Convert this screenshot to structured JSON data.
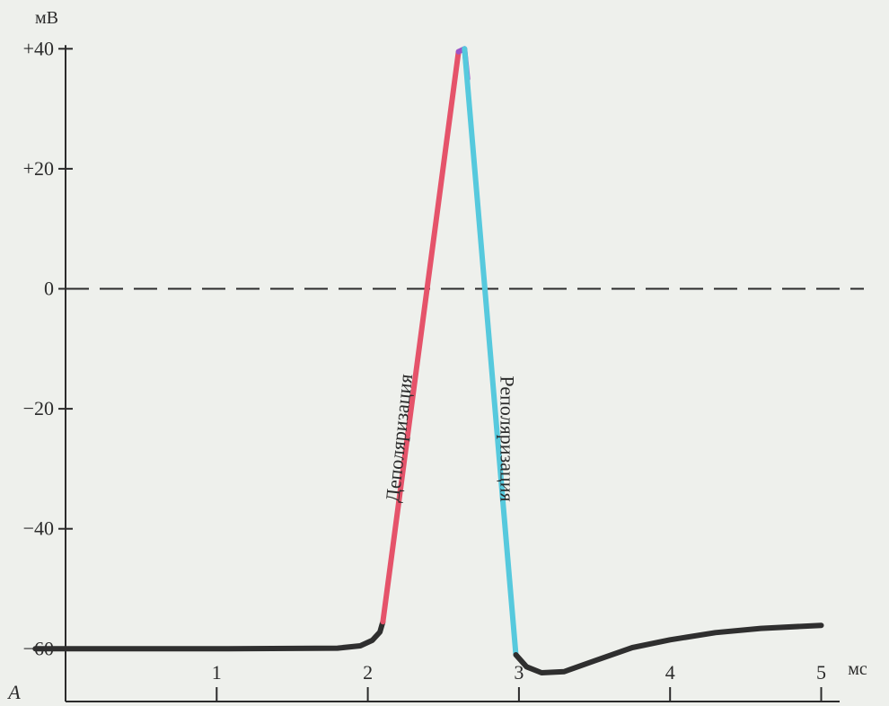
{
  "chart_data": {
    "type": "line",
    "panel_label": "A",
    "y_unit": "мВ",
    "x_unit": "мс",
    "xlim": [
      0,
      5.35
    ],
    "ylim": [
      -68,
      40
    ],
    "x_ticks": [
      {
        "value": 1,
        "label": "1"
      },
      {
        "value": 2,
        "label": "2"
      },
      {
        "value": 3,
        "label": "3"
      },
      {
        "value": 4,
        "label": "4"
      },
      {
        "value": 5,
        "label": "5"
      }
    ],
    "y_ticks": [
      {
        "value": 40,
        "label": "+40"
      },
      {
        "value": 20,
        "label": "+20"
      },
      {
        "value": 0,
        "label": "0"
      },
      {
        "value": -20,
        "label": "−20"
      },
      {
        "value": -40,
        "label": "−40"
      },
      {
        "value": -60,
        "label": "−60"
      }
    ],
    "reference_line": {
      "y": 0,
      "style": "dashed"
    },
    "grid": false,
    "legend": "none",
    "series": [
      {
        "phase": "resting",
        "color": "#2f2f2f",
        "points": [
          [
            -0.2,
            -60
          ],
          [
            1.0,
            -60
          ],
          [
            1.8,
            -59.9
          ],
          [
            1.95,
            -59.5
          ],
          [
            2.03,
            -58.6
          ],
          [
            2.08,
            -57.2
          ],
          [
            2.1,
            -55.5
          ]
        ]
      },
      {
        "name": "Деполяризация",
        "color": "#e5536a",
        "points": [
          [
            2.1,
            -55.5
          ],
          [
            2.6,
            39.5
          ]
        ]
      },
      {
        "phase": "peak",
        "color": "#9b55c8",
        "points": [
          [
            2.6,
            39.5
          ],
          [
            2.64,
            40
          ],
          [
            2.66,
            35
          ]
        ]
      },
      {
        "name": "Реполяризация",
        "color": "#56c9dd",
        "points": [
          [
            2.64,
            40
          ],
          [
            2.98,
            -61
          ]
        ]
      },
      {
        "phase": "after-hyperpolarization",
        "color": "#2f2f2f",
        "points": [
          [
            2.98,
            -61
          ],
          [
            3.05,
            -63
          ],
          [
            3.15,
            -64
          ],
          [
            3.3,
            -63.8
          ],
          [
            3.5,
            -62
          ],
          [
            3.75,
            -59.8
          ],
          [
            4.0,
            -58.5
          ],
          [
            4.3,
            -57.3
          ],
          [
            4.6,
            -56.6
          ],
          [
            5.0,
            -56.1
          ]
        ]
      }
    ],
    "annotations": [
      {
        "text": "Деполяризация",
        "x": 2.25,
        "y": -25,
        "rotation": -84
      },
      {
        "text": "Реполяризация",
        "x": 2.88,
        "y": -25,
        "rotation": 90
      }
    ]
  }
}
